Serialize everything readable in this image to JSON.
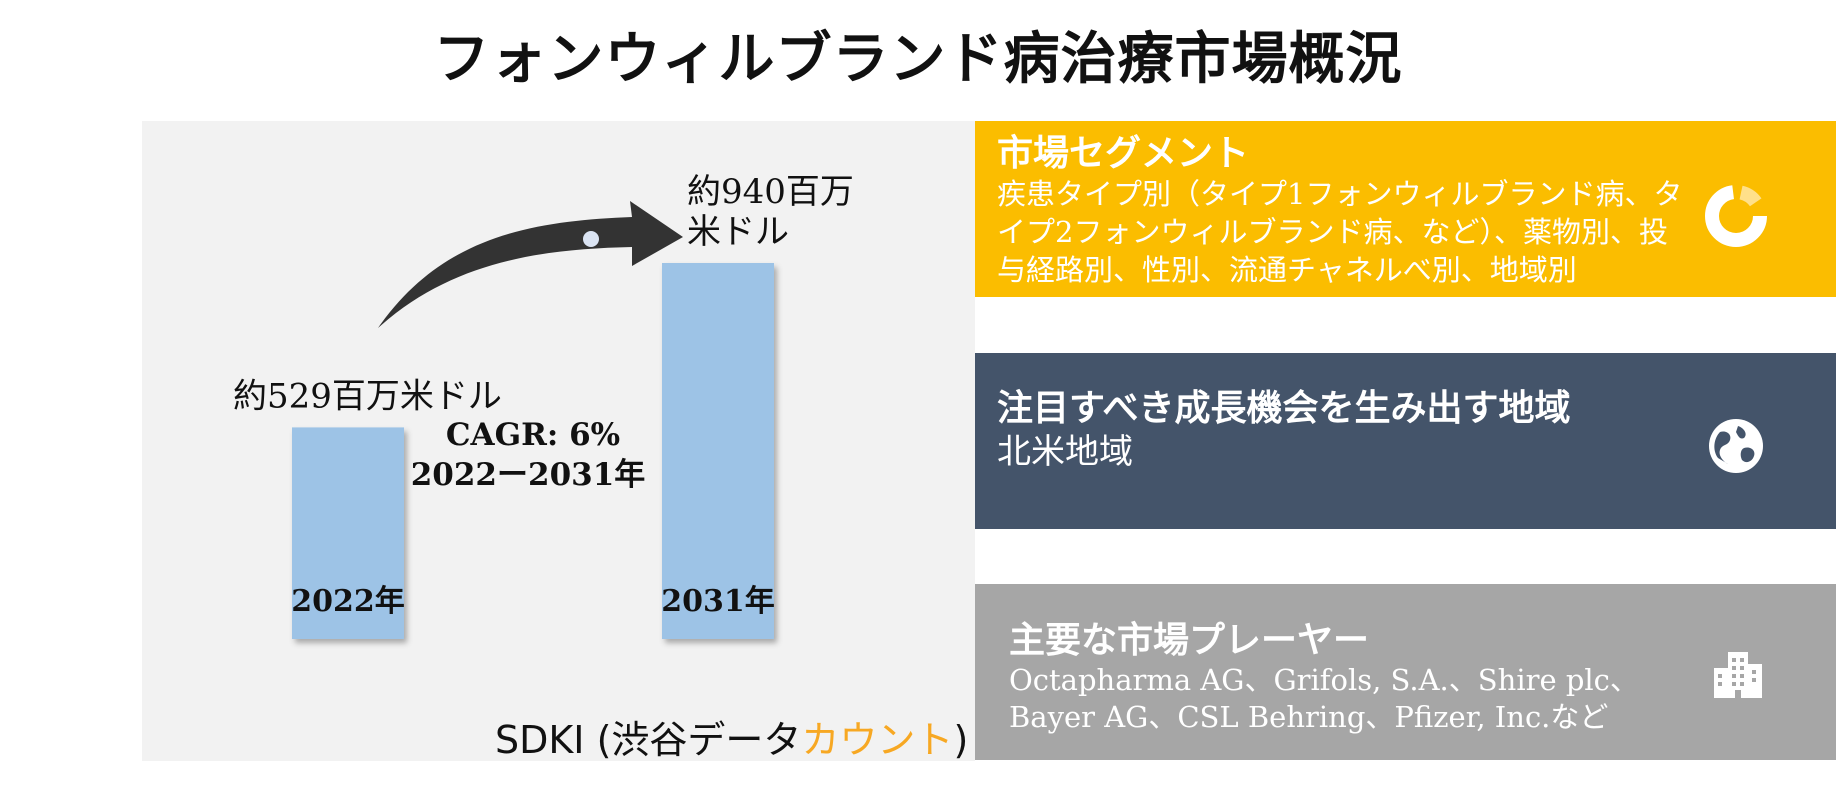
{
  "title": "フォンウィルブランド病治療市場概況",
  "chart_data": {
    "type": "bar",
    "categories": [
      "2022年",
      "2031年"
    ],
    "values": [
      529,
      940
    ],
    "value_labels": [
      "約529百万米ドル",
      "約940百万米ドル"
    ],
    "value_label_lines": [
      [
        "約529百万米ドル"
      ],
      [
        "約940百万",
        "米ドル"
      ]
    ],
    "bar_color": "#9dc3e6",
    "annotation": [
      "CAGR: 6%",
      "2022ー2031年"
    ]
  },
  "brand": {
    "prefix": "SDKI (渋谷データ",
    "accent": "カウント",
    "suffix": ")",
    "accent_color": "#f7a823"
  },
  "segments": {
    "heading": "市場セグメント",
    "body": "疾患タイプ別（タイプ1フォンウィルブランド病、タイプ2フォンウィルブランド病、など）、薬物別、投与経路別、性別、流通チャネルべ別、地域別",
    "color": "#fbbd00",
    "icon": "donut-chart-icon"
  },
  "region": {
    "heading": "注目すべき成長機会を生み出す地域",
    "body": "北米地域",
    "color": "#44546a",
    "icon": "globe-icon"
  },
  "players": {
    "heading": "主要な市場プレーヤー",
    "body": "Octapharma AG、Grifols, S.A.、Shire plc、Bayer AG、CSL Behring、Pfizer, Inc.など",
    "color": "#a6a6a6",
    "icon": "building-icon"
  }
}
